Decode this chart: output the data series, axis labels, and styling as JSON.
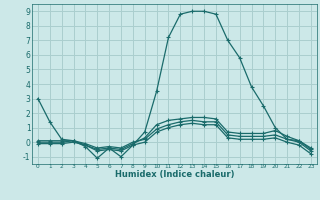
{
  "xlabel": "Humidex (Indice chaleur)",
  "ylabel": "",
  "background_color": "#cce8e8",
  "grid_color": "#aacece",
  "line_color": "#1a6b6b",
  "x_values": [
    0,
    1,
    2,
    3,
    4,
    5,
    6,
    7,
    8,
    9,
    10,
    11,
    12,
    13,
    14,
    15,
    16,
    17,
    18,
    19,
    20,
    21,
    22,
    23
  ],
  "line1": [
    3.0,
    1.4,
    0.2,
    0.1,
    -0.3,
    -1.1,
    -0.4,
    -1.0,
    -0.2,
    0.7,
    3.5,
    7.2,
    8.8,
    9.0,
    9.0,
    8.8,
    7.0,
    5.8,
    3.8,
    2.5,
    1.0,
    0.2,
    0.1,
    -0.5
  ],
  "line2": [
    0.1,
    0.1,
    0.1,
    0.1,
    -0.2,
    -0.5,
    -0.4,
    -0.5,
    -0.1,
    0.3,
    1.2,
    1.5,
    1.6,
    1.7,
    1.7,
    1.6,
    0.7,
    0.6,
    0.6,
    0.6,
    0.8,
    0.4,
    0.1,
    -0.4
  ],
  "line3": [
    0.0,
    0.0,
    0.0,
    0.1,
    -0.1,
    -0.4,
    -0.3,
    -0.4,
    0.0,
    0.2,
    0.9,
    1.2,
    1.4,
    1.5,
    1.4,
    1.4,
    0.5,
    0.4,
    0.4,
    0.4,
    0.5,
    0.2,
    0.0,
    -0.6
  ],
  "line4": [
    -0.1,
    -0.1,
    -0.1,
    0.0,
    -0.2,
    -0.6,
    -0.5,
    -0.6,
    -0.2,
    0.0,
    0.7,
    1.0,
    1.2,
    1.3,
    1.2,
    1.2,
    0.3,
    0.2,
    0.2,
    0.2,
    0.3,
    0.0,
    -0.2,
    -0.8
  ],
  "ylim": [
    -1.5,
    9.5
  ],
  "xlim": [
    -0.5,
    23.5
  ],
  "yticks": [
    -1,
    0,
    1,
    2,
    3,
    4,
    5,
    6,
    7,
    8,
    9
  ],
  "xticks": [
    0,
    1,
    2,
    3,
    4,
    5,
    6,
    7,
    8,
    9,
    10,
    11,
    12,
    13,
    14,
    15,
    16,
    17,
    18,
    19,
    20,
    21,
    22,
    23
  ]
}
